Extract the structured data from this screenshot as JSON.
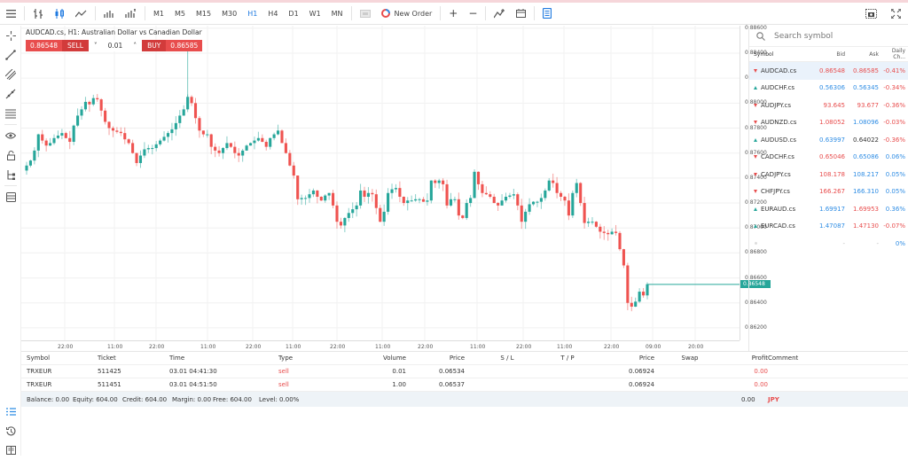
{
  "toolbar": {
    "menu_icon": "hamburger-icon",
    "chart_types": [
      "bar-chart-icon",
      "candle-chart-icon",
      "line-chart-icon",
      "volume-icon",
      "volume-tick-icon"
    ],
    "timeframes": [
      "M1",
      "M5",
      "M15",
      "M30",
      "H1",
      "H4",
      "D1",
      "W1",
      "MN"
    ],
    "active_timeframe": "H1",
    "new_order_label": "New Order",
    "zoom_in": "+",
    "zoom_out": "−"
  },
  "chart": {
    "title": "AUDCAD.cs, H1: Australian Dollar vs Canadian Dollar",
    "sell_price": "0.86548",
    "sell_label": "SELL",
    "volume": "0.01",
    "buy_label": "BUY",
    "buy_price": "0.86585",
    "current_price": "0.86548",
    "price_ticks": [
      "0.88600",
      "0.88400",
      "0.88200",
      "0.88000",
      "0.87800",
      "0.87600",
      "0.87400",
      "0.87200",
      "0.87000",
      "0.86800",
      "0.86600",
      "0.86400",
      "0.86200"
    ],
    "time_ticks": [
      "22:00",
      "11:00",
      "22:00",
      "11:00",
      "22:00",
      "11:00",
      "22:00",
      "11:00",
      "22:00",
      "11:00",
      "22:00",
      "11:00",
      "22:00",
      "09:00",
      "20:00"
    ],
    "up_color": "#26a69a",
    "down_color": "#ef5350"
  },
  "chart_data": {
    "type": "candlestick",
    "title": "AUDCAD.cs, H1: Australian Dollar vs Canadian Dollar",
    "ylim": [
      0.861,
      0.8862
    ],
    "closes": [
      0.875,
      0.8754,
      0.8762,
      0.8775,
      0.877,
      0.8766,
      0.8768,
      0.8772,
      0.8774,
      0.8776,
      0.8772,
      0.8769,
      0.8782,
      0.879,
      0.8795,
      0.8801,
      0.8799,
      0.8804,
      0.8803,
      0.8794,
      0.8785,
      0.878,
      0.8778,
      0.8777,
      0.8776,
      0.8771,
      0.8768,
      0.876,
      0.8752,
      0.8758,
      0.8763,
      0.8764,
      0.8764,
      0.8767,
      0.877,
      0.8773,
      0.8776,
      0.8779,
      0.8784,
      0.879,
      0.8795,
      0.8805,
      0.88,
      0.8788,
      0.8778,
      0.8775,
      0.8775,
      0.8765,
      0.8762,
      0.876,
      0.8764,
      0.8768,
      0.8765,
      0.876,
      0.8758,
      0.8762,
      0.8766,
      0.8768,
      0.877,
      0.8772,
      0.8769,
      0.8765,
      0.8772,
      0.8775,
      0.8778,
      0.8768,
      0.876,
      0.875,
      0.8742,
      0.8723,
      0.8724,
      0.8724,
      0.8727,
      0.873,
      0.8725,
      0.8722,
      0.8726,
      0.8728,
      0.8718,
      0.8705,
      0.8702,
      0.8708,
      0.8712,
      0.8715,
      0.8718,
      0.873,
      0.8725,
      0.8728,
      0.8727,
      0.8716,
      0.8705,
      0.8713,
      0.8728,
      0.8731,
      0.8732,
      0.8725,
      0.872,
      0.8722,
      0.8722,
      0.8723,
      0.8723,
      0.8721,
      0.8722,
      0.8738,
      0.8736,
      0.8738,
      0.8735,
      0.8718,
      0.8723,
      0.8723,
      0.871,
      0.8708,
      0.872,
      0.8724,
      0.8745,
      0.8735,
      0.8728,
      0.8727,
      0.8725,
      0.872,
      0.8718,
      0.8722,
      0.8725,
      0.8726,
      0.8727,
      0.8718,
      0.8705,
      0.8713,
      0.8719,
      0.8721,
      0.8721,
      0.8724,
      0.873,
      0.8738,
      0.8736,
      0.8728,
      0.8725,
      0.8722,
      0.871,
      0.8728,
      0.8736,
      0.872,
      0.8704,
      0.8705,
      0.8705,
      0.8701,
      0.8697,
      0.8696,
      0.8695,
      0.8697,
      0.8696,
      0.8683,
      0.867,
      0.864,
      0.8637,
      0.8641,
      0.8649,
      0.8646,
      0.8655
    ]
  },
  "watchlist": {
    "search_placeholder": "Search symbol",
    "columns": [
      "Symbol",
      "Bid",
      "Ask",
      "Daily Ch..."
    ],
    "rows": [
      {
        "symbol": "AUDCAD.cs",
        "dir": "down",
        "bid": "0.86548",
        "bid_c": "red",
        "ask": "0.86585",
        "ask_c": "red",
        "chg": "-0.41%",
        "chg_c": "red",
        "selected": true
      },
      {
        "symbol": "AUDCHF.cs",
        "dir": "up",
        "bid": "0.56306",
        "bid_c": "blue",
        "ask": "0.56345",
        "ask_c": "blue",
        "chg": "-0.34%",
        "chg_c": "red"
      },
      {
        "symbol": "AUDJPY.cs",
        "dir": "down",
        "bid": "93.645",
        "bid_c": "red",
        "ask": "93.677",
        "ask_c": "red",
        "chg": "-0.36%",
        "chg_c": "red"
      },
      {
        "symbol": "AUDNZD.cs",
        "dir": "down",
        "bid": "1.08052",
        "bid_c": "red",
        "ask": "1.08096",
        "ask_c": "blue",
        "chg": "-0.03%",
        "chg_c": "red"
      },
      {
        "symbol": "AUDUSD.cs",
        "dir": "up",
        "bid": "0.63997",
        "bid_c": "blue",
        "ask": "0.64022",
        "ask_c": "dark",
        "chg": "-0.36%",
        "chg_c": "red"
      },
      {
        "symbol": "CADCHF.cs",
        "dir": "down",
        "bid": "0.65046",
        "bid_c": "red",
        "ask": "0.65086",
        "ask_c": "blue",
        "chg": "0.06%",
        "chg_c": "blue"
      },
      {
        "symbol": "CADJPY.cs",
        "dir": "down",
        "bid": "108.178",
        "bid_c": "red",
        "ask": "108.217",
        "ask_c": "blue",
        "chg": "0.05%",
        "chg_c": "blue"
      },
      {
        "symbol": "CHFJPY.cs",
        "dir": "down",
        "bid": "166.267",
        "bid_c": "red",
        "ask": "166.310",
        "ask_c": "blue",
        "chg": "0.05%",
        "chg_c": "blue"
      },
      {
        "symbol": "EURAUD.cs",
        "dir": "up",
        "bid": "1.69917",
        "bid_c": "blue",
        "ask": "1.69953",
        "ask_c": "red",
        "chg": "0.36%",
        "chg_c": "blue"
      },
      {
        "symbol": "EURCAD.cs",
        "dir": "up",
        "bid": "1.47087",
        "bid_c": "blue",
        "ask": "1.47130",
        "ask_c": "red",
        "chg": "-0.07%",
        "chg_c": "red"
      },
      {
        "symbol": "",
        "dir": "none",
        "bid": "-",
        "bid_c": "faint",
        "ask": "-",
        "ask_c": "faint",
        "chg": "0%",
        "chg_c": "blue"
      }
    ]
  },
  "orders": {
    "columns": [
      "Symbol",
      "Ticket",
      "Time",
      "Type",
      "Volume",
      "Price",
      "S / L",
      "T / P",
      "Price",
      "Swap",
      "Profit",
      "Comment"
    ],
    "rows": [
      {
        "symbol": "TRXEUR",
        "ticket": "511425",
        "time": "03.01 04:41:30",
        "type": "sell",
        "volume": "0.01",
        "price": "0.06534",
        "sl": "",
        "tp": "",
        "cur_price": "0.06924",
        "swap": "",
        "profit": "0.00",
        "comment": ""
      },
      {
        "symbol": "TRXEUR",
        "ticket": "511451",
        "time": "03.01 04:51:50",
        "type": "sell",
        "volume": "1.00",
        "price": "0.06537",
        "sl": "",
        "tp": "",
        "cur_price": "0.06924",
        "swap": "",
        "profit": "0.00",
        "comment": ""
      }
    ],
    "summary": {
      "balance": "Balance: 0.00",
      "equity": "Equity: 604.00",
      "credit": "Credit: 604.00",
      "margin": "Margin: 0.00",
      "free": "Free: 604.00",
      "level": "Level: 0.00%",
      "profit": "0.00",
      "currency": "JPY"
    }
  }
}
